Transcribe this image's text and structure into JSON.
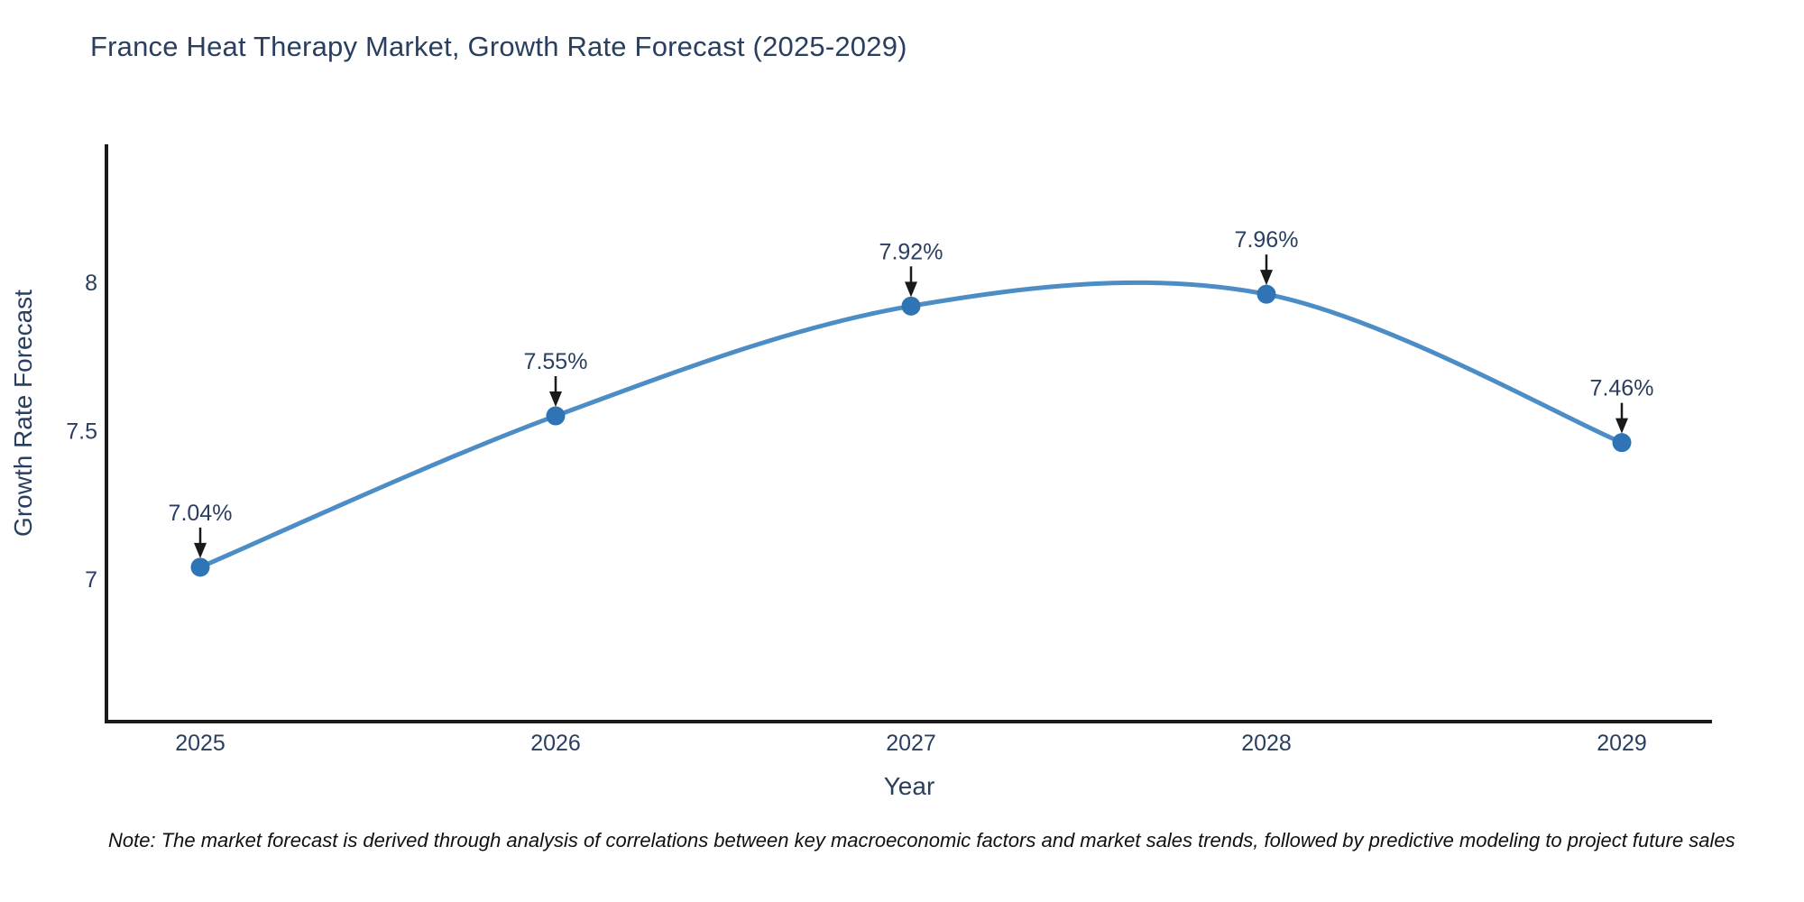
{
  "chart_data": {
    "type": "line",
    "title": "France Heat Therapy Market, Growth Rate Forecast (2025-2029)",
    "xlabel": "Year",
    "ylabel": "Growth Rate Forecast",
    "categories": [
      "2025",
      "2026",
      "2027",
      "2028",
      "2029"
    ],
    "series": [
      {
        "name": "Growth Rate Forecast",
        "values": [
          7.04,
          7.55,
          7.92,
          7.96,
          7.46
        ],
        "point_labels": [
          "7.04%",
          "7.55%",
          "7.92%",
          "7.96%",
          "7.46%"
        ]
      }
    ],
    "y_ticks": [
      {
        "value": 7,
        "label": "7"
      },
      {
        "value": 7.5,
        "label": "7.5"
      },
      {
        "value": 8,
        "label": "8"
      }
    ],
    "ylim": [
      6.52,
      8.47
    ],
    "grid": false,
    "legend": false,
    "line_shape": "spline",
    "annotations_style": "label-with-down-arrow",
    "colors": {
      "line": "#4C8DC5",
      "marker": "#2F74B4",
      "axis": "#1a1a1a",
      "tick_text": "#2a3f5f",
      "annotation_text": "#2a3f5f",
      "arrow": "#1a1a1a"
    }
  },
  "note": {
    "text": "Note: The market forecast is derived through analysis of correlations between key macroeconomic factors and market sales trends, followed by predictive modeling to project future sales"
  }
}
